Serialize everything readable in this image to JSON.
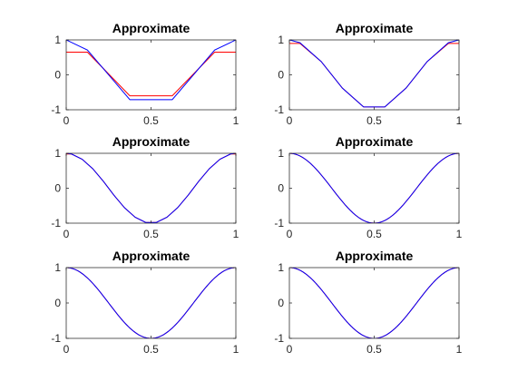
{
  "chart_data": [
    {
      "type": "line",
      "title": "Approximate",
      "xlim": [
        0,
        1
      ],
      "ylim": [
        -1,
        1
      ],
      "xticks": [
        "0",
        "0.5",
        "1"
      ],
      "yticks": [
        "-1",
        "0",
        "1"
      ],
      "grid": false,
      "series": [
        {
          "color": "#ff0000",
          "x": [
            0,
            0.125,
            0.125,
            0.375,
            0.375,
            0.625,
            0.625,
            0.875,
            0.875,
            1
          ],
          "y": [
            0.65,
            0.65,
            0.65,
            -0.6,
            -0.6,
            -0.6,
            -0.6,
            0.65,
            0.65,
            0.65
          ]
        },
        {
          "color": "#0000ff",
          "x": [
            0,
            0.125,
            0.375,
            0.625,
            0.875,
            1
          ],
          "y": [
            1,
            0.71,
            -0.71,
            -0.71,
            0.71,
            1
          ]
        }
      ]
    },
    {
      "type": "line",
      "title": "Approximate",
      "xlim": [
        0,
        1
      ],
      "ylim": [
        -1,
        1
      ],
      "xticks": [
        "0",
        "0.5",
        "1"
      ],
      "yticks": [
        "-1",
        "0",
        "1"
      ],
      "grid": false,
      "series": [
        {
          "color": "#ff0000",
          "x": [
            0,
            0.0625,
            0.1875,
            0.3125,
            0.4375,
            0.5625,
            0.6875,
            0.8125,
            0.9375,
            1
          ],
          "y": [
            0.9,
            0.9,
            0.38,
            -0.38,
            -0.92,
            -0.92,
            -0.38,
            0.38,
            0.9,
            0.9
          ]
        },
        {
          "color": "#0000ff",
          "x": [
            0,
            0.0625,
            0.1875,
            0.3125,
            0.4375,
            0.5625,
            0.6875,
            0.8125,
            0.9375,
            1
          ],
          "y": [
            1,
            0.92,
            0.38,
            -0.38,
            -0.92,
            -0.92,
            -0.38,
            0.38,
            0.92,
            1
          ]
        }
      ]
    },
    {
      "type": "line",
      "title": "Approximate",
      "xlim": [
        0,
        1
      ],
      "ylim": [
        -1,
        1
      ],
      "xticks": [
        "0",
        "0.5",
        "1"
      ],
      "yticks": [
        "-1",
        "0",
        "1"
      ],
      "grid": false,
      "series": [
        {
          "color": "#ff0000",
          "x": [
            0,
            0.03125,
            0.09375,
            0.15625,
            0.21875,
            0.28125,
            0.34375,
            0.40625,
            0.46875,
            0.53125,
            0.59375,
            0.65625,
            0.71875,
            0.78125,
            0.84375,
            0.90625,
            0.96875,
            1
          ],
          "y": [
            0.98,
            0.98,
            0.83,
            0.56,
            0.2,
            -0.2,
            -0.56,
            -0.83,
            -0.98,
            -0.98,
            -0.83,
            -0.56,
            -0.2,
            0.2,
            0.56,
            0.83,
            0.98,
            0.98
          ]
        },
        {
          "color": "#0000ff",
          "x": [
            0,
            0.03125,
            0.09375,
            0.15625,
            0.21875,
            0.28125,
            0.34375,
            0.40625,
            0.46875,
            0.53125,
            0.59375,
            0.65625,
            0.71875,
            0.78125,
            0.84375,
            0.90625,
            0.96875,
            1
          ],
          "y": [
            1,
            0.98,
            0.83,
            0.56,
            0.2,
            -0.2,
            -0.56,
            -0.83,
            -0.98,
            -0.98,
            -0.83,
            -0.56,
            -0.2,
            0.2,
            0.56,
            0.83,
            0.98,
            1
          ]
        }
      ]
    },
    {
      "type": "line",
      "title": "Approximate",
      "xlim": [
        0,
        1
      ],
      "ylim": [
        -1,
        1
      ],
      "xticks": [
        "0",
        "0.5",
        "1"
      ],
      "yticks": [
        "-1",
        "0",
        "1"
      ],
      "grid": false,
      "series": [
        {
          "color": "#ff0000",
          "function": "cos(2*pi*x)",
          "samples": 64
        },
        {
          "color": "#0000ff",
          "function": "cos(2*pi*x)",
          "samples": 64
        }
      ]
    },
    {
      "type": "line",
      "title": "Approximate",
      "xlim": [
        0,
        1
      ],
      "ylim": [
        -1,
        1
      ],
      "xticks": [
        "0",
        "0.5",
        "1"
      ],
      "yticks": [
        "-1",
        "0",
        "1"
      ],
      "grid": false,
      "series": [
        {
          "color": "#ff0000",
          "function": "cos(2*pi*x)",
          "samples": 128
        },
        {
          "color": "#0000ff",
          "function": "cos(2*pi*x)",
          "samples": 128
        }
      ]
    },
    {
      "type": "line",
      "title": "Approximate",
      "xlim": [
        0,
        1
      ],
      "ylim": [
        -1,
        1
      ],
      "xticks": [
        "0",
        "0.5",
        "1"
      ],
      "yticks": [
        "-1",
        "0",
        "1"
      ],
      "grid": false,
      "series": [
        {
          "color": "#ff0000",
          "function": "cos(2*pi*x)",
          "samples": 256
        },
        {
          "color": "#0000ff",
          "function": "cos(2*pi*x)",
          "samples": 256
        }
      ]
    }
  ]
}
